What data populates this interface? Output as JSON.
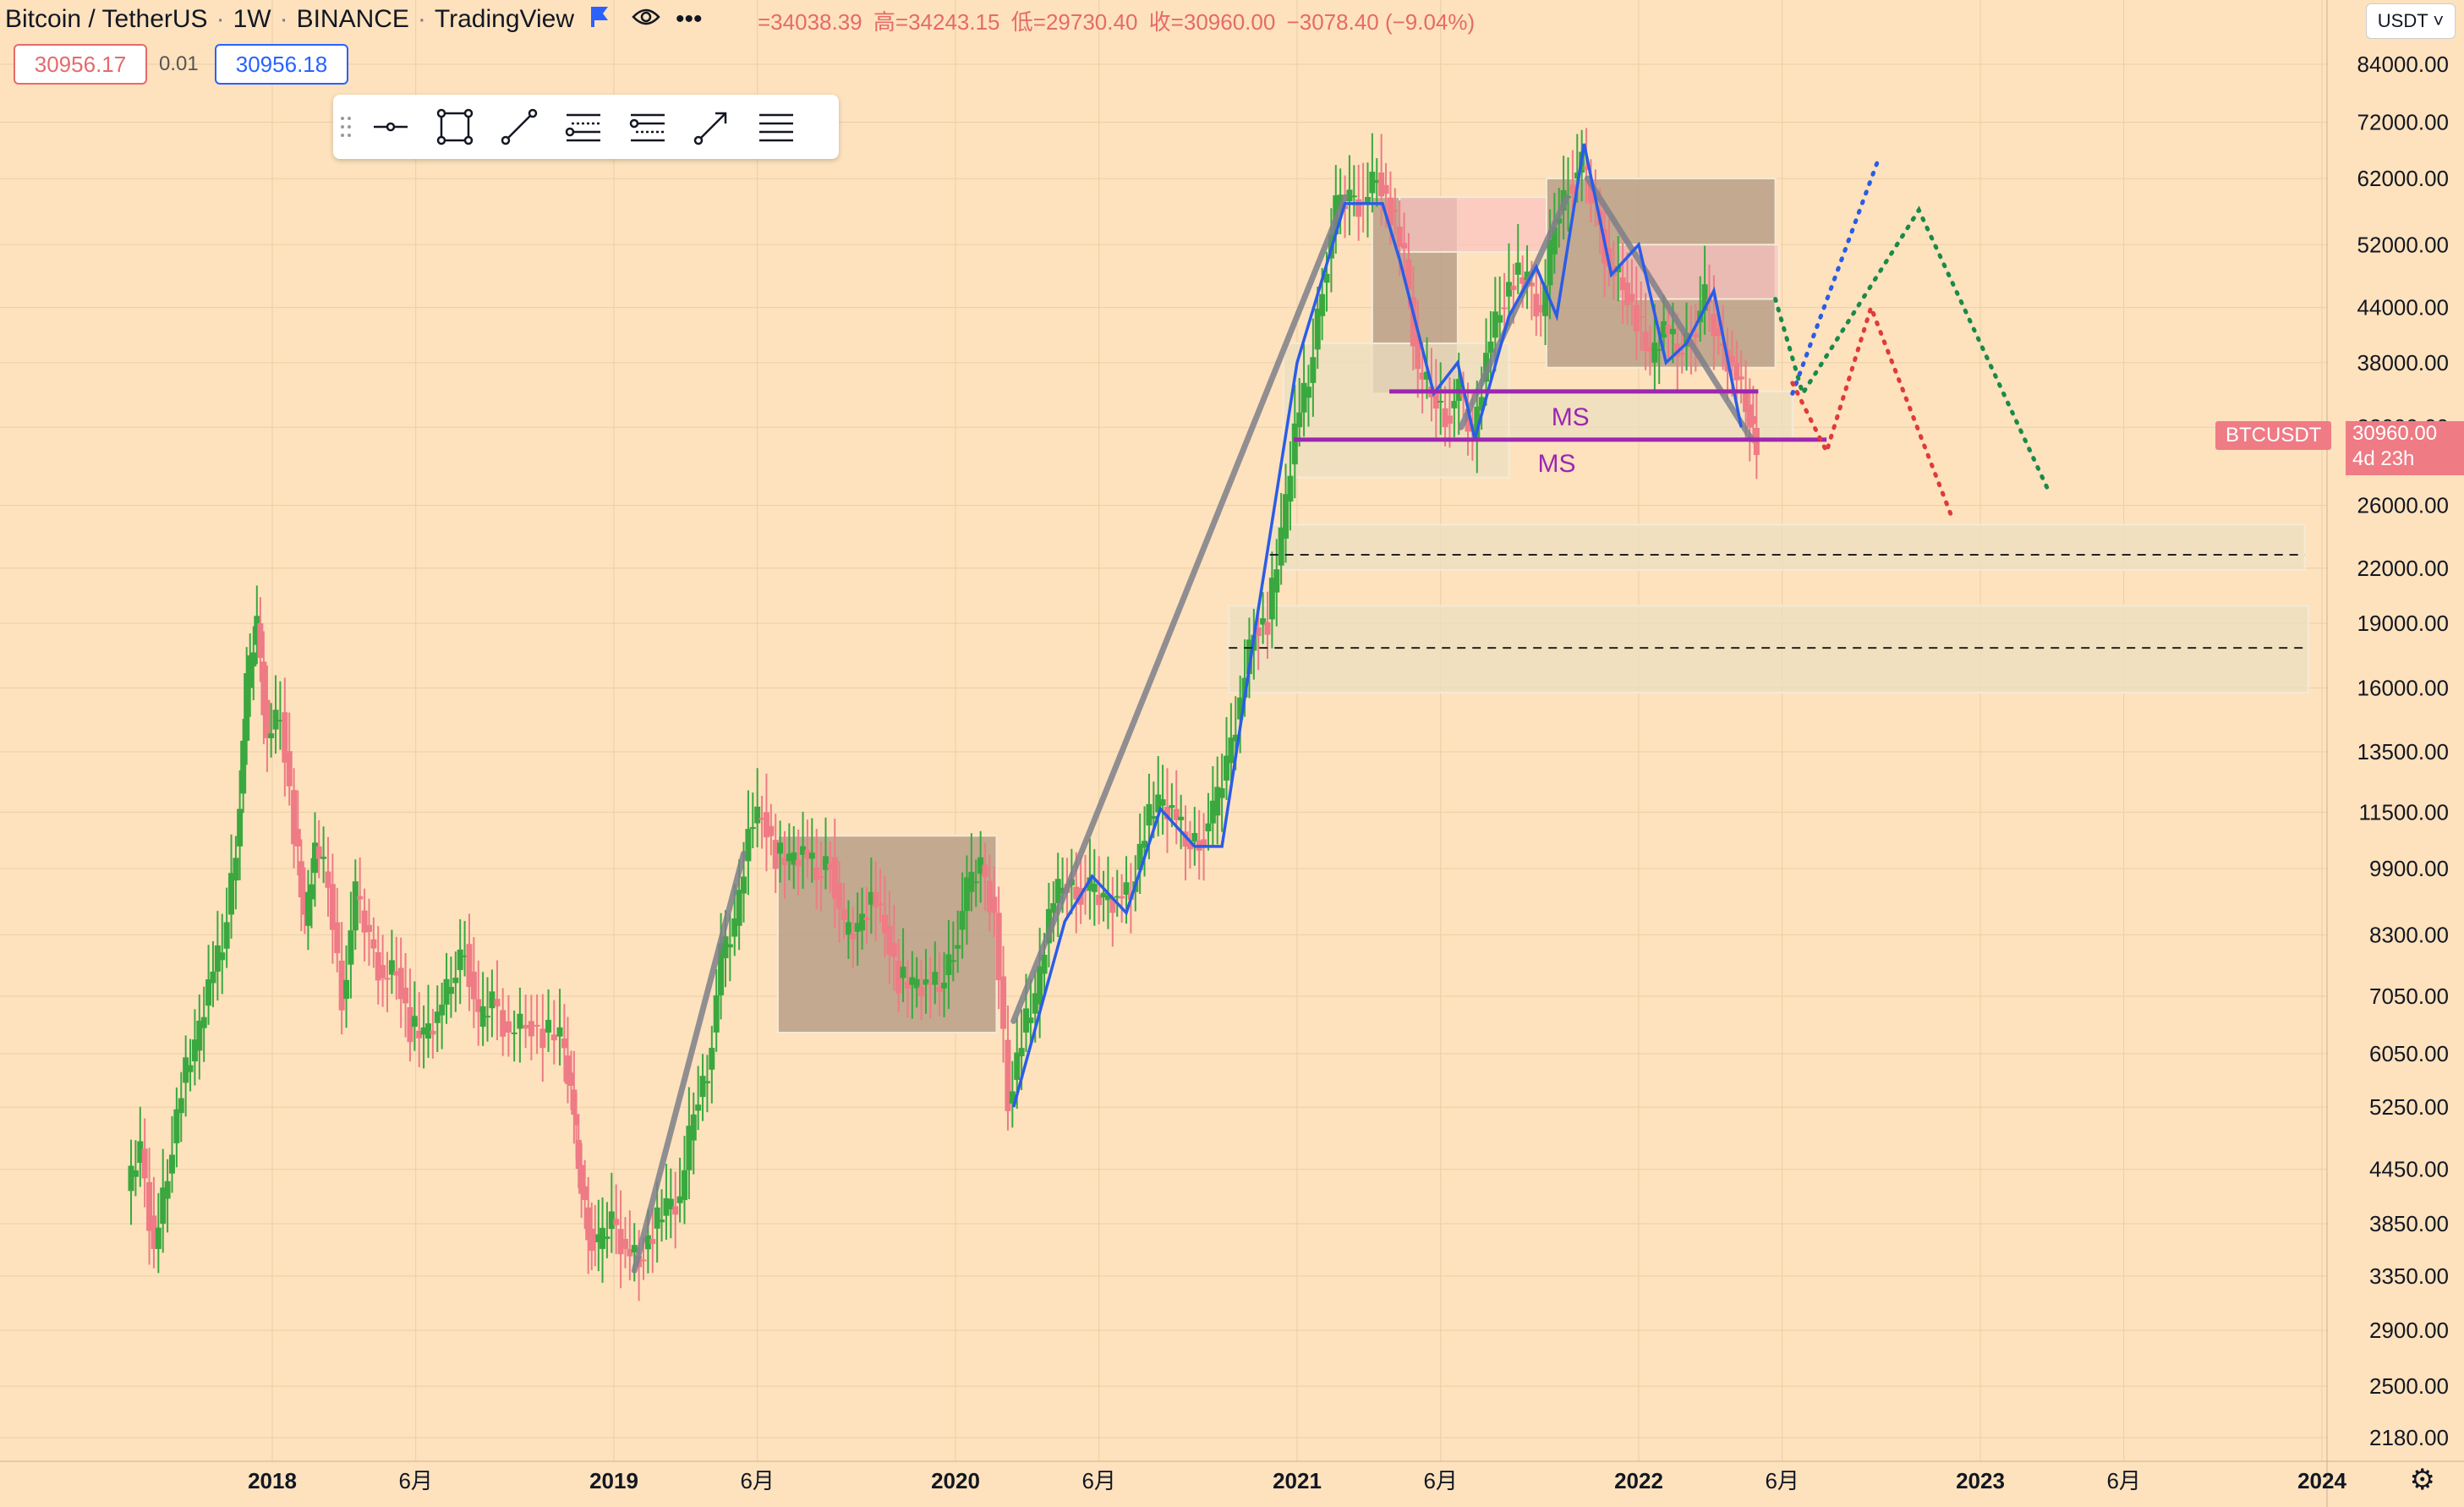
{
  "header": {
    "symbol": "Bitcoin / TetherUS",
    "interval": "1W",
    "exchange": "BINANCE",
    "source": "TradingView",
    "ohlc": {
      "open": "=34038.39",
      "high_label": "高",
      "high": "=34243.15",
      "low_label": "低",
      "low": "=29730.40",
      "close_label": "收",
      "close": "=30960.00",
      "change": "−3078.40 (−9.04%)"
    }
  },
  "order": {
    "sell": "30956.17",
    "spread": "0.01",
    "buy": "30956.18"
  },
  "currency": "USDT ˅",
  "price_label": {
    "ticker": "BTCUSDT",
    "last": "30960.00",
    "countdown": "4d 23h"
  },
  "annotations": {
    "ms1": "MS",
    "ms2": "MS"
  },
  "colors": {
    "bg": "#fde2bd",
    "up": "#3aa83f",
    "down": "#ee7b85",
    "blue": "#2b5ce6",
    "purple": "#9c27b0",
    "gray": "#7e7f8a"
  },
  "toolbar_icons": [
    "drag-handle-icon",
    "horizontal-line-icon",
    "rectangle-icon",
    "trend-line-icon",
    "long-position-icon",
    "short-position-icon",
    "arrow-icon",
    "menu-icon"
  ],
  "chart_data": {
    "type": "line",
    "yscale": "log",
    "ylim": [
      2000,
      90000
    ],
    "y_ticks": [
      "84000.00",
      "72000.00",
      "62000.00",
      "52000.00",
      "44000.00",
      "38000.00",
      "32000.00",
      "26000.00",
      "22000.00",
      "19000.00",
      "16000.00",
      "13500.00",
      "11500.00",
      "9900.00",
      "8300.00",
      "7050.00",
      "6050.00",
      "5250.00",
      "4450.00",
      "3850.00",
      "3350.00",
      "2900.00",
      "2500.00",
      "2180.00"
    ],
    "y_tick_values": [
      84000,
      72000,
      62000,
      52000,
      44000,
      38000,
      32000,
      26000,
      22000,
      19000,
      16000,
      13500,
      11500,
      9900,
      8300,
      7050,
      6050,
      5250,
      4450,
      3850,
      3350,
      2900,
      2500,
      2180
    ],
    "x_ticks": [
      {
        "label": "2018",
        "t": 2018.0,
        "major": true
      },
      {
        "label": "6月",
        "t": 2018.42,
        "major": false
      },
      {
        "label": "2019",
        "t": 2019.0,
        "major": true
      },
      {
        "label": "6月",
        "t": 2019.42,
        "major": false
      },
      {
        "label": "2020",
        "t": 2020.0,
        "major": true
      },
      {
        "label": "6月",
        "t": 2020.42,
        "major": false
      },
      {
        "label": "2021",
        "t": 2021.0,
        "major": true
      },
      {
        "label": "6月",
        "t": 2021.42,
        "major": false
      },
      {
        "label": "2022",
        "t": 2022.0,
        "major": true
      },
      {
        "label": "6月",
        "t": 2022.42,
        "major": false
      },
      {
        "label": "2023",
        "t": 2023.0,
        "major": true
      },
      {
        "label": "6月",
        "t": 2023.42,
        "major": false
      },
      {
        "label": "2024",
        "t": 2024.0,
        "major": true
      }
    ],
    "xlim": [
      2017.3,
      2024.1
    ],
    "price_path": [
      [
        2017.58,
        4200
      ],
      [
        2017.62,
        4700
      ],
      [
        2017.66,
        3600
      ],
      [
        2017.7,
        4400
      ],
      [
        2017.74,
        5600
      ],
      [
        2017.78,
        6100
      ],
      [
        2017.82,
        7300
      ],
      [
        2017.86,
        8000
      ],
      [
        2017.9,
        10500
      ],
      [
        2017.93,
        16000
      ],
      [
        2017.96,
        19000
      ],
      [
        2017.99,
        14000
      ],
      [
        2018.03,
        15000
      ],
      [
        2018.07,
        11000
      ],
      [
        2018.1,
        8500
      ],
      [
        2018.13,
        10500
      ],
      [
        2018.17,
        9500
      ],
      [
        2018.21,
        7000
      ],
      [
        2018.25,
        9200
      ],
      [
        2018.29,
        8200
      ],
      [
        2018.33,
        7400
      ],
      [
        2018.37,
        7600
      ],
      [
        2018.41,
        6500
      ],
      [
        2018.45,
        6300
      ],
      [
        2018.49,
        6700
      ],
      [
        2018.53,
        7300
      ],
      [
        2018.57,
        8100
      ],
      [
        2018.61,
        6500
      ],
      [
        2018.65,
        7000
      ],
      [
        2018.7,
        6400
      ],
      [
        2018.75,
        6600
      ],
      [
        2018.8,
        6400
      ],
      [
        2018.85,
        6300
      ],
      [
        2018.88,
        5500
      ],
      [
        2018.9,
        4500
      ],
      [
        2018.93,
        3800
      ],
      [
        2018.96,
        3600
      ],
      [
        2019.0,
        3900
      ],
      [
        2019.04,
        3600
      ],
      [
        2019.08,
        3500
      ],
      [
        2019.12,
        3800
      ],
      [
        2019.16,
        4000
      ],
      [
        2019.2,
        4100
      ],
      [
        2019.24,
        5200
      ],
      [
        2019.28,
        5800
      ],
      [
        2019.32,
        7800
      ],
      [
        2019.36,
        8500
      ],
      [
        2019.4,
        11000
      ],
      [
        2019.44,
        11500
      ],
      [
        2019.48,
        10300
      ],
      [
        2019.52,
        10000
      ],
      [
        2019.56,
        10400
      ],
      [
        2019.6,
        9700
      ],
      [
        2019.64,
        10200
      ],
      [
        2019.68,
        8300
      ],
      [
        2019.72,
        8400
      ],
      [
        2019.76,
        9300
      ],
      [
        2019.8,
        8500
      ],
      [
        2019.84,
        7400
      ],
      [
        2019.88,
        7200
      ],
      [
        2019.92,
        7300
      ],
      [
        2019.96,
        7200
      ],
      [
        2020.0,
        8000
      ],
      [
        2020.04,
        9300
      ],
      [
        2020.08,
        10000
      ],
      [
        2020.12,
        8800
      ],
      [
        2020.16,
        5300
      ],
      [
        2020.2,
        6400
      ],
      [
        2020.24,
        6900
      ],
      [
        2020.28,
        8800
      ],
      [
        2020.32,
        9500
      ],
      [
        2020.36,
        9400
      ],
      [
        2020.4,
        9300
      ],
      [
        2020.44,
        9100
      ],
      [
        2020.48,
        9200
      ],
      [
        2020.52,
        9300
      ],
      [
        2020.56,
        11100
      ],
      [
        2020.6,
        11700
      ],
      [
        2020.64,
        11600
      ],
      [
        2020.68,
        10600
      ],
      [
        2020.72,
        10700
      ],
      [
        2020.76,
        11400
      ],
      [
        2020.8,
        13100
      ],
      [
        2020.84,
        15600
      ],
      [
        2020.88,
        18800
      ],
      [
        2020.92,
        19200
      ],
      [
        2020.96,
        23800
      ],
      [
        2021.0,
        32000
      ],
      [
        2021.04,
        36000
      ],
      [
        2021.08,
        47000
      ],
      [
        2021.12,
        57000
      ],
      [
        2021.16,
        59000
      ],
      [
        2021.2,
        58000
      ],
      [
        2021.24,
        63000
      ],
      [
        2021.28,
        57000
      ],
      [
        2021.32,
        50000
      ],
      [
        2021.36,
        37000
      ],
      [
        2021.4,
        35000
      ],
      [
        2021.44,
        33000
      ],
      [
        2021.48,
        35000
      ],
      [
        2021.52,
        31000
      ],
      [
        2021.56,
        39000
      ],
      [
        2021.6,
        44000
      ],
      [
        2021.64,
        48000
      ],
      [
        2021.68,
        47000
      ],
      [
        2021.72,
        43000
      ],
      [
        2021.76,
        55000
      ],
      [
        2021.8,
        61000
      ],
      [
        2021.84,
        64000
      ],
      [
        2021.88,
        57000
      ],
      [
        2021.92,
        49000
      ],
      [
        2021.96,
        47000
      ],
      [
        2022.0,
        43000
      ],
      [
        2022.04,
        38000
      ],
      [
        2022.08,
        42000
      ],
      [
        2022.12,
        39000
      ],
      [
        2022.16,
        41000
      ],
      [
        2022.2,
        45000
      ],
      [
        2022.24,
        40000
      ],
      [
        2022.28,
        38000
      ],
      [
        2022.32,
        34000
      ],
      [
        2022.35,
        30960
      ]
    ],
    "zones": [
      {
        "name": "brown-box-2019",
        "x": [
          2019.48,
          2020.12
        ],
        "y": [
          6400,
          10800
        ],
        "color": "#b89f87"
      },
      {
        "name": "brown-box-2021a",
        "x": [
          2021.22,
          2021.47
        ],
        "y": [
          35000,
          59000
        ],
        "color": "#b89f87"
      },
      {
        "name": "brown-box-2021b",
        "x": [
          2021.73,
          2022.4
        ],
        "y": [
          37500,
          62000
        ],
        "color": "#b89f87"
      },
      {
        "name": "pink-box-a",
        "x": [
          2021.3,
          2021.73
        ],
        "y": [
          51000,
          59000
        ],
        "color": "#f9c3c0"
      },
      {
        "name": "pink-box-b",
        "x": [
          2021.94,
          2022.41
        ],
        "y": [
          45000,
          52000
        ],
        "color": "#f9c3c0"
      },
      {
        "name": "beige-box-a",
        "x": [
          2020.96,
          2021.62
        ],
        "y": [
          28000,
          40000
        ],
        "color": "#ecdfc0"
      },
      {
        "name": "beige-box-b",
        "x": [
          2021.62,
          2022.45
        ],
        "y": [
          30960,
          35200
        ],
        "color": "#ecdfc0"
      },
      {
        "name": "support-22k",
        "x": [
          2020.92,
          2023.95
        ],
        "y": [
          21900,
          24700
        ],
        "color": "#ecdfc0"
      },
      {
        "name": "support-18k",
        "x": [
          2020.8,
          2023.96
        ],
        "y": [
          15800,
          19900
        ],
        "color": "#ecdfc0"
      }
    ],
    "levels": [
      {
        "name": "ms-line-upper",
        "x": [
          2021.27,
          2022.35
        ],
        "y": 35200,
        "color": "#9c27b0"
      },
      {
        "name": "ms-line-lower",
        "x": [
          2020.99,
          2022.55
        ],
        "y": 30960,
        "color": "#9c27b0"
      },
      {
        "name": "dashed-22k",
        "x": [
          2020.92,
          2023.95
        ],
        "y": 22800,
        "color": "#222"
      },
      {
        "name": "dashed-18k",
        "x": [
          2020.8,
          2023.96
        ],
        "y": 17800,
        "color": "#222"
      }
    ],
    "trend_lines": [
      {
        "name": "gray-trend-2019",
        "points": [
          [
            2019.06,
            3400
          ],
          [
            2019.38,
            10300
          ]
        ],
        "color": "#7e7f8a"
      },
      {
        "name": "gray-trend-2020",
        "points": [
          [
            2020.17,
            6600
          ],
          [
            2021.14,
            59000
          ]
        ],
        "color": "#7e7f8a"
      },
      {
        "name": "gray-trend-2021",
        "points": [
          [
            2021.48,
            32000
          ],
          [
            2021.79,
            59000
          ]
        ],
        "color": "#7e7f8a"
      },
      {
        "name": "gray-trend-2022",
        "points": [
          [
            2021.85,
            62000
          ],
          [
            2022.33,
            31000
          ]
        ],
        "color": "#7e7f8a"
      }
    ],
    "wave_lines": [
      {
        "name": "blue-wave-2020",
        "points": [
          [
            2020.17,
            5250
          ],
          [
            2020.32,
            8600
          ],
          [
            2020.4,
            9700
          ],
          [
            2020.5,
            8800
          ],
          [
            2020.6,
            11600
          ],
          [
            2020.7,
            10500
          ],
          [
            2020.78,
            10500
          ],
          [
            2020.88,
            19000
          ],
          [
            2021.0,
            38000
          ],
          [
            2021.14,
            58000
          ],
          [
            2021.25,
            58000
          ],
          [
            2021.3,
            50000
          ],
          [
            2021.4,
            35000
          ],
          [
            2021.47,
            38000
          ],
          [
            2021.52,
            31000
          ],
          [
            2021.62,
            43000
          ],
          [
            2021.7,
            49000
          ],
          [
            2021.76,
            43000
          ],
          [
            2021.84,
            68000
          ],
          [
            2021.92,
            48000
          ],
          [
            2022.0,
            52000
          ],
          [
            2022.08,
            38000
          ],
          [
            2022.14,
            40000
          ],
          [
            2022.22,
            46000
          ],
          [
            2022.3,
            32000
          ]
        ],
        "color": "#2b5ce6"
      }
    ],
    "projections": [
      {
        "name": "blue-projection",
        "points": [
          [
            2022.45,
            35000
          ],
          [
            2022.7,
            65000
          ]
        ],
        "color": "#2b5ce6"
      },
      {
        "name": "green-projection",
        "points": [
          [
            2022.4,
            45000
          ],
          [
            2022.48,
            35000
          ],
          [
            2022.82,
            57000
          ],
          [
            2023.2,
            27000
          ]
        ],
        "color": "#1a8a4a"
      },
      {
        "name": "red-projection",
        "points": [
          [
            2022.45,
            36000
          ],
          [
            2022.55,
            30000
          ],
          [
            2022.68,
            44000
          ],
          [
            2022.92,
            25000
          ]
        ],
        "color": "#e03a3a"
      }
    ]
  }
}
